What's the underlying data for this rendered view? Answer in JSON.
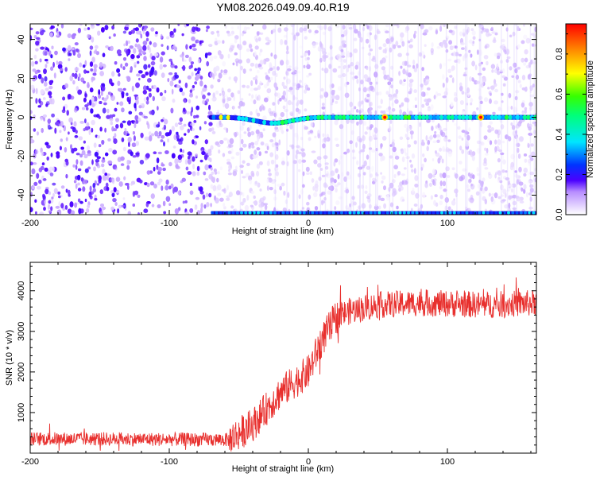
{
  "title": "YM08.2026.049.09.40.R19",
  "chart_data": [
    {
      "type": "heatmap",
      "title": "YM08.2026.049.09.40.R19",
      "xlabel": "Height of straight line (km)",
      "ylabel": "Frequency (Hz)",
      "xlim": [
        -200,
        164
      ],
      "ylim": [
        -50,
        48
      ],
      "xticks": [
        -200,
        -100,
        0,
        100
      ],
      "yticks": [
        -40,
        -20,
        0,
        20,
        40
      ],
      "colorbar": {
        "label": "Normalized spectral amplitude",
        "range": [
          0,
          0.95
        ],
        "ticks": [
          0.0,
          0.2,
          0.4,
          0.6,
          0.8
        ]
      },
      "features": {
        "noise_edge_km": -70,
        "signal_line_start_km": -70,
        "signal_line_freq_hz": 0,
        "dip_center_km": -25,
        "dip_depth_hz": -3,
        "alias_line_freq_hz": -49,
        "peak_amplitude_km": [
          55,
          124
        ]
      }
    },
    {
      "type": "line",
      "xlabel": "Height of straight line (km)",
      "ylabel": "SNR (10 * v/v)",
      "xlim": [
        -200,
        164
      ],
      "ylim": [
        0,
        4700
      ],
      "xticks": [
        -200,
        -100,
        0,
        100
      ],
      "yticks": [
        1000,
        2000,
        3000,
        4000
      ],
      "series": [
        {
          "name": "SNR",
          "color": "#e8302e",
          "x": [
            -200,
            -150,
            -100,
            -57,
            -40,
            -20,
            0,
            10,
            20,
            30,
            50,
            80,
            100,
            130,
            164
          ],
          "y": [
            350,
            350,
            340,
            330,
            700,
            1500,
            2000,
            2800,
            3350,
            3500,
            3650,
            3700,
            3680,
            3650,
            3700
          ]
        }
      ]
    }
  ]
}
